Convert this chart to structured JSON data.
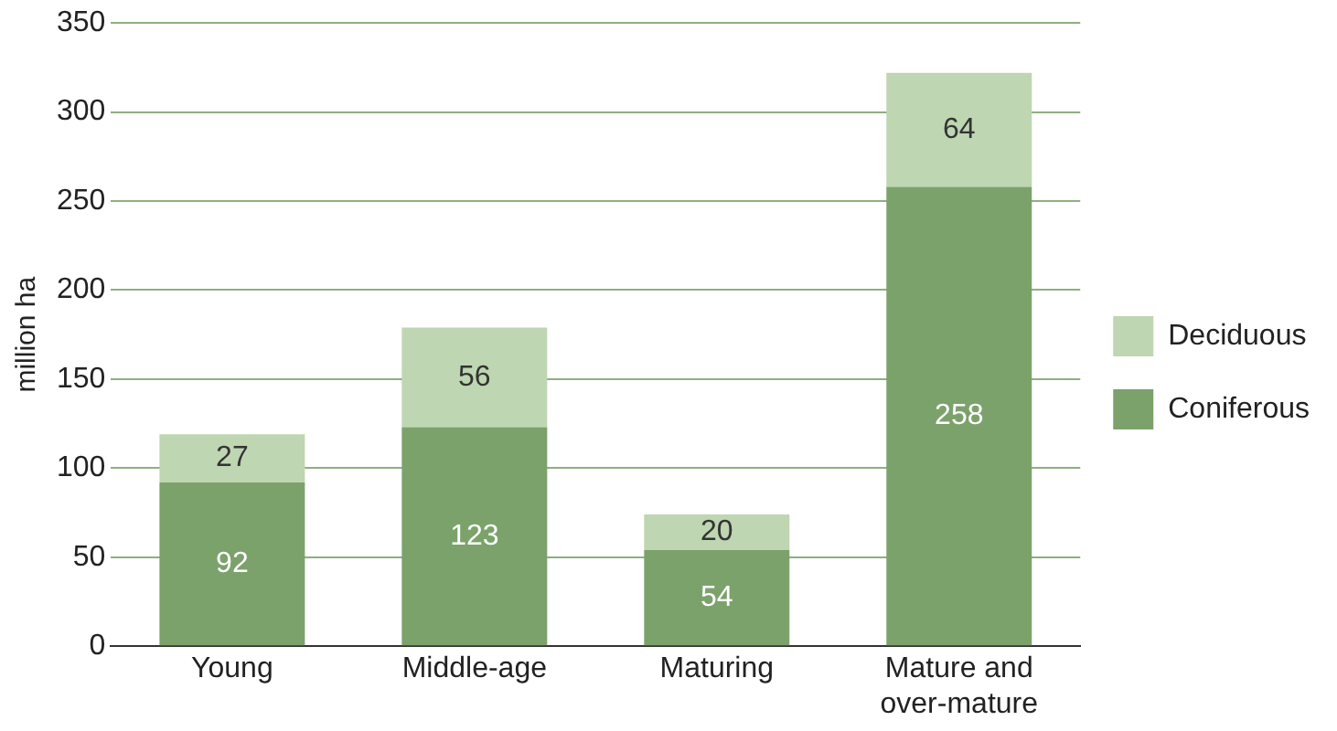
{
  "chart_data": {
    "type": "bar",
    "stacked": true,
    "ylabel": "million ha",
    "categories": [
      "Young",
      "Middle-age",
      "Maturing",
      "Mature and over-mature"
    ],
    "series": [
      {
        "name": "Coniferous",
        "color": "#7ba26b",
        "values": [
          92,
          123,
          54,
          258
        ]
      },
      {
        "name": "Deciduous",
        "color": "#bed6b1",
        "values": [
          27,
          56,
          20,
          64
        ]
      }
    ],
    "ylim": [
      0,
      350
    ],
    "yticks": [
      0,
      50,
      100,
      150,
      200,
      250,
      300,
      350
    ],
    "grid": "y",
    "legend": "right",
    "data_labels": true
  }
}
